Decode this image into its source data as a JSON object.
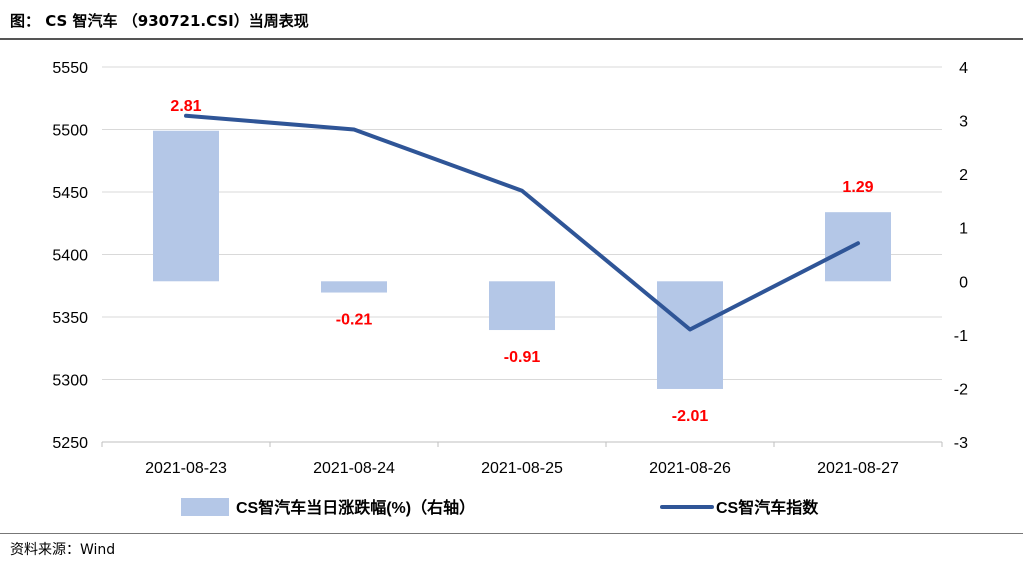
{
  "header": {
    "title": "图：  CS 智汽车 （930721.CSI）当周表现"
  },
  "footer": {
    "source": "资料来源：Wind"
  },
  "colors": {
    "bar": "#b4c7e7",
    "line": "#2f5597",
    "label": "#ff0000",
    "grid": "#d9d9d9"
  },
  "chart_data": {
    "type": "bar+line",
    "categories": [
      "2021-08-23",
      "2021-08-24",
      "2021-08-25",
      "2021-08-26",
      "2021-08-27"
    ],
    "series": [
      {
        "name": "CS智汽车当日涨跌幅(%)（右轴）",
        "type": "bar",
        "axis": "right",
        "values": [
          2.81,
          -0.21,
          -0.91,
          -2.01,
          1.29
        ],
        "labels": [
          "2.81",
          "-0.21",
          "-0.91",
          "-2.01",
          "1.29"
        ]
      },
      {
        "name": "CS智汽车指数",
        "type": "line",
        "axis": "left",
        "values": [
          5511,
          5500,
          5451,
          5340,
          5409
        ]
      }
    ],
    "y_left": {
      "min": 5250,
      "max": 5550,
      "ticks": [
        "5550",
        "5500",
        "5450",
        "5400",
        "5350",
        "5300",
        "5250"
      ]
    },
    "y_right": {
      "min": -3,
      "max": 4,
      "ticks": [
        "4",
        "3",
        "2",
        "1",
        "0",
        "-1",
        "-2",
        "-3"
      ]
    },
    "grid": true,
    "legend": "bottom"
  }
}
